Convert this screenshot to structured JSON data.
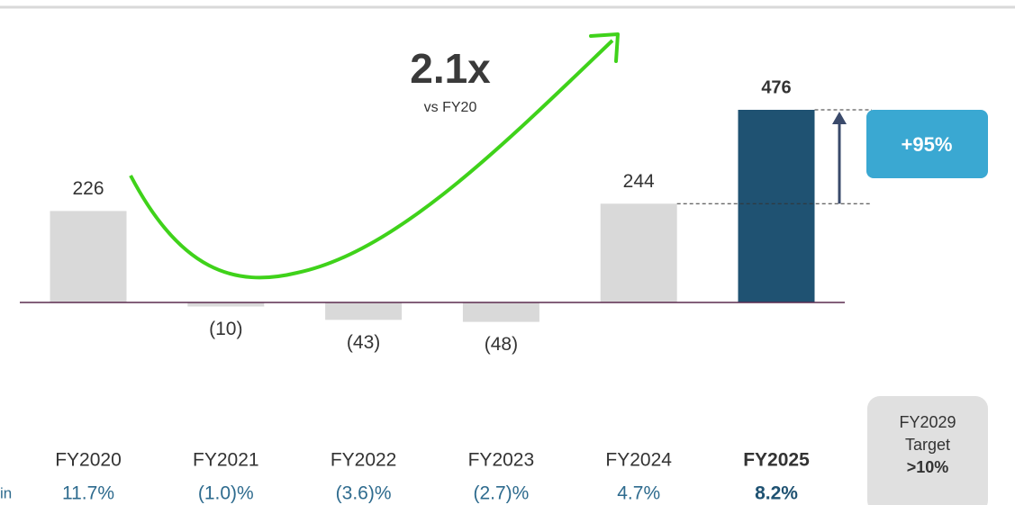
{
  "chart_data": {
    "type": "bar",
    "categories": [
      "FY2020",
      "FY2021",
      "FY2022",
      "FY2023",
      "FY2024",
      "FY2025"
    ],
    "values": [
      226,
      -10,
      -43,
      -48,
      244,
      476
    ],
    "value_labels": [
      "226",
      "(10)",
      "(43)",
      "(48)",
      "244",
      "476"
    ],
    "colors": [
      "#d9d9d9",
      "#d9d9d9",
      "#d9d9d9",
      "#d9d9d9",
      "#d9d9d9",
      "#1f5272"
    ],
    "highlight": 5,
    "margins_label": "in",
    "margins": [
      "11.7%",
      "(1.0)%",
      "(3.6)%",
      "(2.7)%",
      "4.7%",
      "8.2%"
    ],
    "growth_annotation": {
      "headline": "2.1x",
      "subtext": "vs FY20"
    },
    "change_annotation": "+95%",
    "target": {
      "lines": [
        "FY2029",
        "Target"
      ],
      "value": ">10%"
    }
  }
}
